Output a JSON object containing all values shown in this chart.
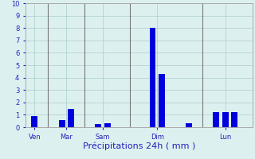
{
  "bar_positions": [
    0.5,
    3.5,
    4.5,
    7.5,
    8.5,
    13.5,
    14.5,
    17.5,
    20.5,
    21.5,
    22.5
  ],
  "bar_heights": [
    0.9,
    0.6,
    1.5,
    0.25,
    0.35,
    8.0,
    4.3,
    0.3,
    1.2,
    1.2,
    1.2
  ],
  "bar_color": "#0000dd",
  "bar_width": 0.7,
  "xlim": [
    -0.5,
    24.5
  ],
  "ylim": [
    0,
    10
  ],
  "yticks": [
    0,
    1,
    2,
    3,
    4,
    5,
    6,
    7,
    8,
    9,
    10
  ],
  "ytick_fontsize": 6,
  "xtick_labels": [
    "Ven",
    "Mar",
    "Sam",
    "Dim",
    "Lun"
  ],
  "xtick_positions": [
    0.5,
    4.0,
    8.0,
    14.0,
    21.5
  ],
  "xtick_fontsize": 6,
  "xlabel": "Précipitations 24h ( mm )",
  "xlabel_fontsize": 8,
  "xlabel_color": "#2222bb",
  "background_color": "#ddf0f0",
  "grid_color": "#aacccc",
  "grid_linewidth": 0.5,
  "vline_positions": [
    2.0,
    6.0,
    11.0,
    19.0
  ],
  "vline_color": "#777777",
  "vline_linewidth": 0.8,
  "tick_color": "#2222bb",
  "spine_color": "#aaaaaa"
}
